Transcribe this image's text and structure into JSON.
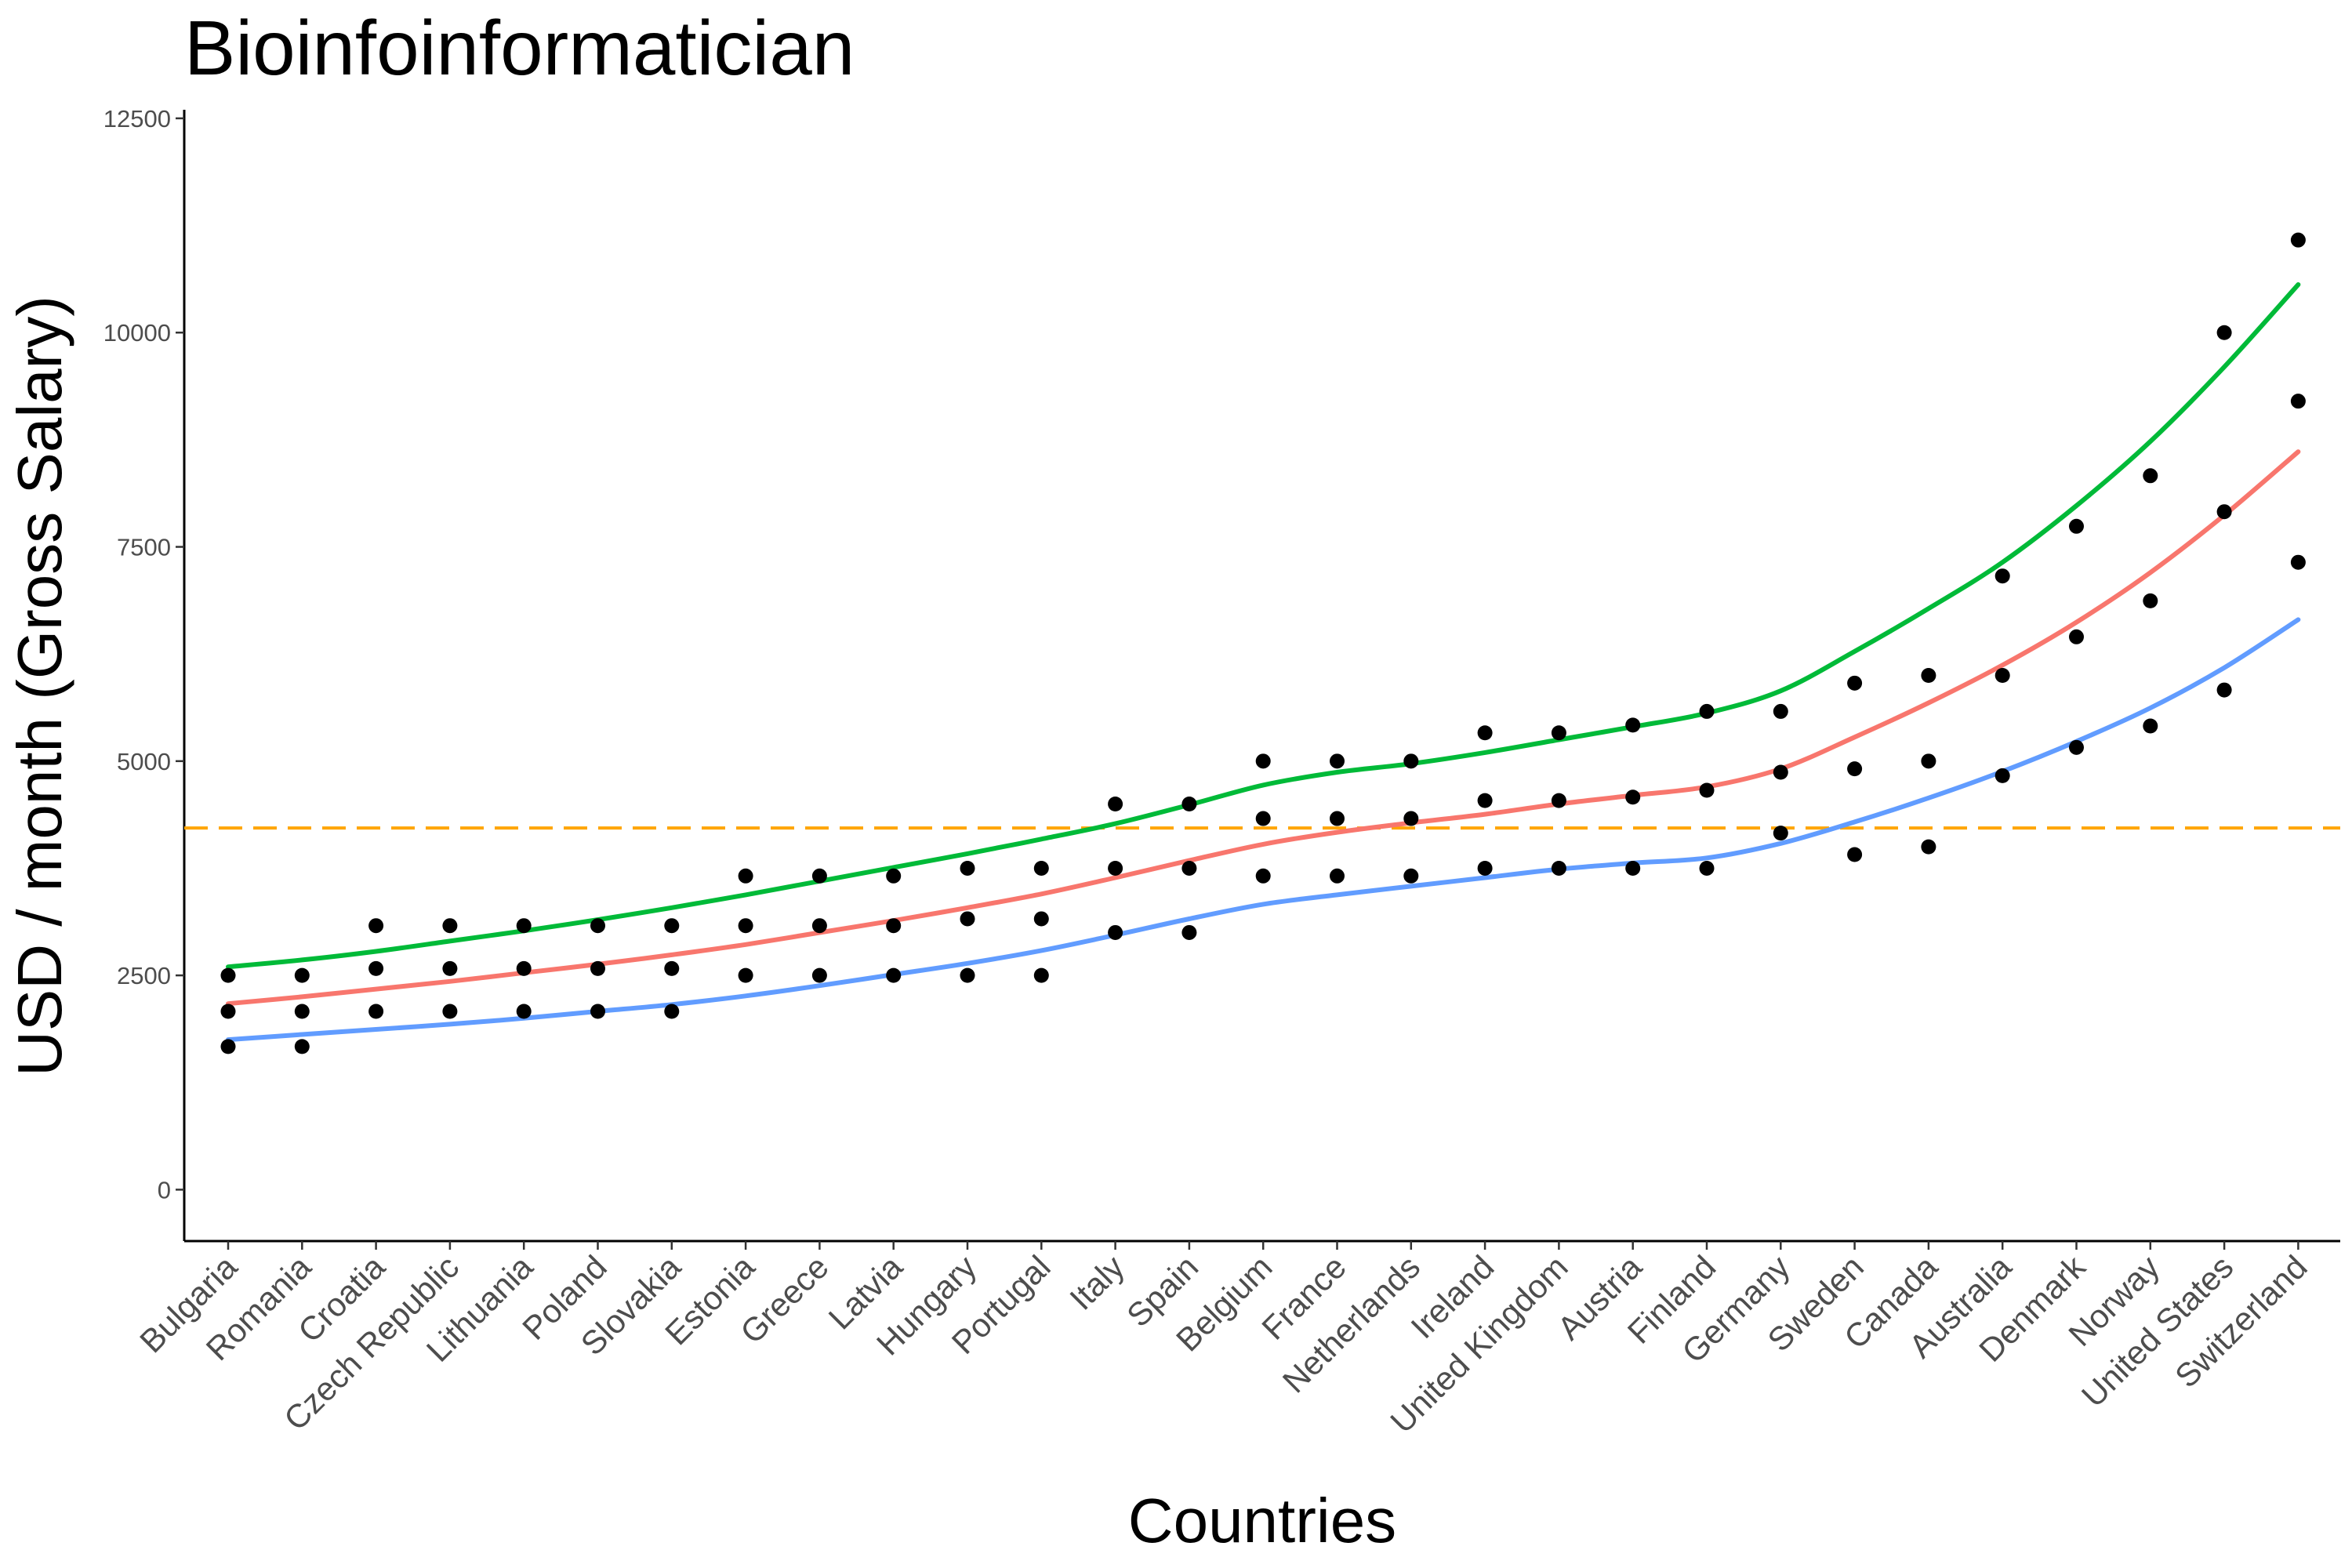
{
  "chart_data": {
    "type": "scatter",
    "title": "Bioinfoinformatician",
    "xlabel": "Countries",
    "ylabel": "USD / month (Gross Salary)",
    "ylim": [
      -600,
      12600
    ],
    "yticks": [
      0,
      2500,
      5000,
      7500,
      10000,
      12500
    ],
    "grid": false,
    "legend": "none",
    "categories": [
      "Bulgaria",
      "Romania",
      "Croatia",
      "Czech Republic",
      "Lithuania",
      "Poland",
      "Slovakia",
      "Estonia",
      "Greece",
      "Latvia",
      "Hungary",
      "Portugal",
      "Italy",
      "Spain",
      "Belgium",
      "France",
      "Netherlands",
      "Ireland",
      "United Kingdom",
      "Austria",
      "Finland",
      "Germany",
      "Sweden",
      "Canada",
      "Australia",
      "Denmark",
      "Norway",
      "United States",
      "Switzerland"
    ],
    "points": [
      [
        1670,
        2080,
        2500
      ],
      [
        1670,
        2080,
        2500
      ],
      [
        2080,
        2580,
        3080
      ],
      [
        2080,
        2580,
        3080
      ],
      [
        2080,
        2580,
        3080
      ],
      [
        2080,
        2580,
        3080
      ],
      [
        2080,
        2580,
        3080
      ],
      [
        2500,
        3080,
        3660
      ],
      [
        2500,
        3080,
        3660
      ],
      [
        2500,
        3080,
        3660
      ],
      [
        2500,
        3160,
        3750
      ],
      [
        2500,
        3160,
        3750
      ],
      [
        3000,
        3750,
        4500
      ],
      [
        3000,
        3750,
        4500
      ],
      [
        3660,
        4330,
        5000
      ],
      [
        3660,
        4330,
        5000
      ],
      [
        3660,
        4330,
        5000
      ],
      [
        3750,
        4540,
        5330
      ],
      [
        3750,
        4540,
        5330
      ],
      [
        3750,
        4580,
        5420
      ],
      [
        3750,
        4660,
        5580
      ],
      [
        4160,
        4870,
        5580
      ],
      [
        3910,
        4910,
        5910
      ],
      [
        4000,
        5000,
        6000
      ],
      [
        4830,
        6000,
        7160
      ],
      [
        5160,
        6450,
        7740
      ],
      [
        5410,
        6870,
        8330
      ],
      [
        5830,
        7910,
        10000
      ],
      [
        7320,
        9200,
        11080
      ]
    ],
    "series": [
      {
        "name": "",
        "color": "#00ba38",
        "values": [
          2600,
          2680,
          2780,
          2900,
          3020,
          3150,
          3290,
          3440,
          3600,
          3760,
          3920,
          4090,
          4270,
          4490,
          4720,
          4870,
          4970,
          5100,
          5250,
          5400,
          5560,
          5820,
          6280,
          6780,
          7320,
          7980,
          8730,
          9600,
          10560
        ]
      },
      {
        "name": "",
        "color": "#f8766d",
        "values": [
          2170,
          2250,
          2340,
          2430,
          2530,
          2630,
          2740,
          2860,
          3000,
          3140,
          3290,
          3450,
          3640,
          3840,
          4030,
          4170,
          4280,
          4380,
          4500,
          4600,
          4700,
          4910,
          5280,
          5680,
          6120,
          6620,
          7200,
          7870,
          8610
        ]
      },
      {
        "name": "",
        "color": "#619cff",
        "values": [
          1750,
          1810,
          1870,
          1930,
          2000,
          2080,
          2160,
          2260,
          2380,
          2510,
          2640,
          2790,
          2970,
          3160,
          3330,
          3440,
          3540,
          3640,
          3740,
          3810,
          3870,
          4040,
          4290,
          4570,
          4880,
          5230,
          5620,
          6090,
          6650
        ]
      }
    ],
    "reference_line": {
      "value": 4220,
      "color": "#ffa500",
      "style": "dashed"
    }
  }
}
